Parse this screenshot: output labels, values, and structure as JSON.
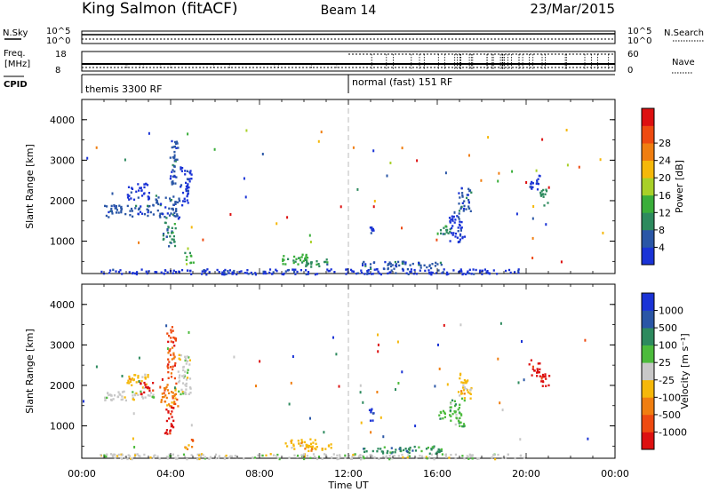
{
  "header": {
    "station": "King Salmon (fitACF)",
    "beam": "Beam 14",
    "date": "23/Mar/2015"
  },
  "strip": {
    "nsky_label": "N.Sky",
    "nsearch_label": "N.Search",
    "noise_ticks": [
      "10^5",
      "10^0"
    ],
    "freq_label": "Freq.",
    "freq_unit": "[MHz]",
    "freq_ticks": [
      "18",
      "8"
    ],
    "nave_label": "Nave",
    "nave_ticks": [
      "60",
      "0"
    ],
    "cpid_label": "CPID",
    "cpid_segments": [
      {
        "label": "themis 3300 RF",
        "start_hour": 0
      },
      {
        "label": "normal (fast) 151 RF",
        "start_hour": 12
      }
    ]
  },
  "colors": {
    "power": [
      "#1a33d6",
      "#2a56a6",
      "#2d8a5e",
      "#3aae3a",
      "#a8d028",
      "#f5b80a",
      "#f07e10",
      "#ee4a10",
      "#dd1010"
    ],
    "velocity": [
      "#1a33d6",
      "#2a56a6",
      "#2d8a5e",
      "#4cbb3c",
      "#c8c8c8",
      "#f5b80a",
      "#f07e10",
      "#ee4a10",
      "#dd1010"
    ]
  },
  "chart_data": [
    {
      "type": "heatmap",
      "name": "power",
      "xlabel": "",
      "ylabel": "Slant Range [km]",
      "xlim": [
        0,
        24
      ],
      "ylim": [
        200,
        4500
      ],
      "y_ticks": [
        1000,
        2000,
        3000,
        4000
      ],
      "colorbar_label": "Power [dB]",
      "colorbar_ticks": [
        "4",
        "8",
        "12",
        "16",
        "20",
        "24",
        "28"
      ],
      "patches": [
        {
          "t0": 1.0,
          "t1": 3.2,
          "r0": 1620,
          "r1": 1920,
          "c": 1
        },
        {
          "t0": 2.0,
          "t1": 3.0,
          "r0": 2050,
          "r1": 2450,
          "c": 0
        },
        {
          "t0": 3.3,
          "t1": 4.4,
          "r0": 1580,
          "r1": 2150,
          "c": 1
        },
        {
          "t0": 4.4,
          "t1": 4.8,
          "r0": 1900,
          "r1": 2350,
          "c": 0
        },
        {
          "t0": 3.9,
          "t1": 4.3,
          "r0": 2400,
          "r1": 3500,
          "c": 1
        },
        {
          "t0": 4.4,
          "t1": 4.9,
          "r0": 2300,
          "r1": 2900,
          "c": 0
        },
        {
          "t0": 3.6,
          "t1": 4.2,
          "r0": 900,
          "r1": 1500,
          "c": 2
        },
        {
          "t0": 4.6,
          "t1": 5.0,
          "r0": 450,
          "r1": 750,
          "c": 3
        },
        {
          "t0": 9.0,
          "t1": 10.3,
          "r0": 450,
          "r1": 700,
          "c": 3
        },
        {
          "t0": 10.0,
          "t1": 11.2,
          "r0": 380,
          "r1": 580,
          "c": 2
        },
        {
          "t0": 12.6,
          "t1": 16.2,
          "r0": 330,
          "r1": 520,
          "c": 1
        },
        {
          "t0": 16.0,
          "t1": 16.6,
          "r0": 1150,
          "r1": 1400,
          "c": 2
        },
        {
          "t0": 16.5,
          "t1": 17.2,
          "r0": 1000,
          "r1": 1700,
          "c": 0
        },
        {
          "t0": 16.9,
          "t1": 17.5,
          "r0": 1700,
          "r1": 2350,
          "c": 1
        },
        {
          "t0": 20.1,
          "t1": 20.6,
          "r0": 2250,
          "r1": 2650,
          "c": 0
        },
        {
          "t0": 20.6,
          "t1": 21.0,
          "r0": 1900,
          "r1": 2300,
          "c": 2
        },
        {
          "t0": 0.8,
          "t1": 20.0,
          "r0": 200,
          "r1": 330,
          "c": 0
        },
        {
          "t0": 12.9,
          "t1": 13.1,
          "r0": 1150,
          "r1": 1450,
          "c": 0
        }
      ]
    },
    {
      "type": "heatmap",
      "name": "velocity",
      "xlabel": "Time UT",
      "ylabel": "Slant Range [km]",
      "xlim": [
        0,
        24
      ],
      "ylim": [
        200,
        4500
      ],
      "x_ticks": [
        "00:00",
        "04:00",
        "08:00",
        "12:00",
        "16:00",
        "20:00",
        "00:00"
      ],
      "y_ticks": [
        1000,
        2000,
        3000,
        4000
      ],
      "colorbar_label": "Velocity [m s⁻¹]",
      "colorbar_ticks": [
        "1000",
        "500",
        "100",
        "25",
        "-25",
        "-100",
        "-500",
        "-1000"
      ],
      "patches": [
        {
          "t0": 1.0,
          "t1": 3.2,
          "r0": 1650,
          "r1": 1900,
          "c": 4
        },
        {
          "t0": 2.0,
          "t1": 3.0,
          "r0": 1950,
          "r1": 2300,
          "c": 5
        },
        {
          "t0": 2.6,
          "t1": 3.2,
          "r0": 1800,
          "r1": 2100,
          "c": 8
        },
        {
          "t0": 3.5,
          "t1": 4.3,
          "r0": 1500,
          "r1": 2100,
          "c": 6
        },
        {
          "t0": 3.7,
          "t1": 4.1,
          "r0": 800,
          "r1": 1500,
          "c": 8
        },
        {
          "t0": 3.8,
          "t1": 4.2,
          "r0": 2200,
          "r1": 3500,
          "c": 7
        },
        {
          "t0": 4.3,
          "t1": 4.9,
          "r0": 1800,
          "r1": 2800,
          "c": 4
        },
        {
          "t0": 4.6,
          "t1": 5.0,
          "r0": 450,
          "r1": 750,
          "c": 6
        },
        {
          "t0": 9.0,
          "t1": 10.5,
          "r0": 450,
          "r1": 700,
          "c": 5
        },
        {
          "t0": 10.0,
          "t1": 11.2,
          "r0": 400,
          "r1": 580,
          "c": 5
        },
        {
          "t0": 12.6,
          "t1": 16.2,
          "r0": 330,
          "r1": 520,
          "c": 2
        },
        {
          "t0": 16.0,
          "t1": 16.6,
          "r0": 1150,
          "r1": 1400,
          "c": 3
        },
        {
          "t0": 16.5,
          "t1": 17.2,
          "r0": 1000,
          "r1": 1700,
          "c": 3
        },
        {
          "t0": 16.9,
          "t1": 17.5,
          "r0": 1700,
          "r1": 2350,
          "c": 5
        },
        {
          "t0": 20.1,
          "t1": 20.6,
          "r0": 2250,
          "r1": 2650,
          "c": 8
        },
        {
          "t0": 20.6,
          "t1": 21.0,
          "r0": 1900,
          "r1": 2300,
          "c": 8
        },
        {
          "t0": 0.8,
          "t1": 20.0,
          "r0": 200,
          "r1": 330,
          "c": 4
        },
        {
          "t0": 12.9,
          "t1": 13.1,
          "r0": 1150,
          "r1": 1450,
          "c": 0
        }
      ]
    }
  ]
}
